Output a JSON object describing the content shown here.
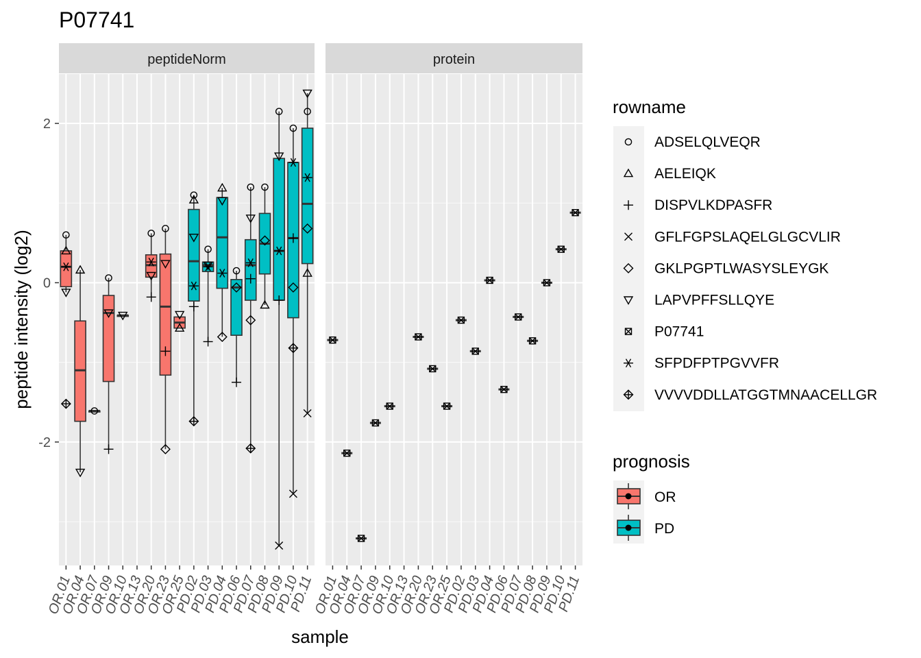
{
  "chart_data": {
    "type": "boxplot",
    "title": "P07741",
    "xlabel": "sample",
    "ylabel": "peptide intensity (log2)",
    "ylim": [
      -3.55,
      2.62
    ],
    "y_ticks": [
      -2,
      0,
      2
    ],
    "grid": true,
    "legend_placement": "right",
    "samples": [
      "OR.01",
      "OR.04",
      "OR.07",
      "OR.09",
      "OR.10",
      "OR.13",
      "OR.20",
      "OR.23",
      "OR.25",
      "PD.02",
      "PD.03",
      "PD.04",
      "PD.06",
      "PD.07",
      "PD.08",
      "PD.09",
      "PD.10",
      "PD.11"
    ],
    "panels": [
      "peptideNorm",
      "protein"
    ],
    "legends": {
      "rowname": {
        "title": "rowname",
        "items": [
          {
            "label": "ADSELQLVEQR",
            "shape": "circle"
          },
          {
            "label": "AELEIQK",
            "shape": "triangle-up"
          },
          {
            "label": "DISPVLKDPASFR",
            "shape": "plus"
          },
          {
            "label": "GFLFGPSLAQELGLGCVLIR",
            "shape": "cross"
          },
          {
            "label": "GKLPGPTLWASYSLEYGK",
            "shape": "diamond"
          },
          {
            "label": "LAPVPFFSLLQYE",
            "shape": "triangle-down"
          },
          {
            "label": "P07741",
            "shape": "square-cross"
          },
          {
            "label": "SFPDFPTPGVVFR",
            "shape": "asterisk"
          },
          {
            "label": "VVVVDDLLATGGTMNAACELLGR",
            "shape": "diamond-plus"
          }
        ]
      },
      "prognosis": {
        "title": "prognosis",
        "items": [
          {
            "label": "OR",
            "color": "#F8766D"
          },
          {
            "label": "PD",
            "color": "#00BFC4"
          }
        ]
      }
    },
    "boxes": [
      {
        "sample": "OR.01",
        "group": "OR",
        "q1": -0.05,
        "median": 0.2,
        "q3": 0.4,
        "lo": -0.12,
        "hi": 0.6
      },
      {
        "sample": "OR.04",
        "group": "OR",
        "q1": -1.74,
        "median": -1.1,
        "q3": -0.48,
        "lo": -2.38,
        "hi": 0.16
      },
      {
        "sample": "OR.07",
        "group": "OR",
        "q1": -1.61,
        "median": -1.61,
        "q3": -1.61,
        "lo": -1.61,
        "hi": -1.61
      },
      {
        "sample": "OR.09",
        "group": "OR",
        "q1": -1.24,
        "median": -0.38,
        "q3": -0.16,
        "lo": -2.09,
        "hi": 0.06
      },
      {
        "sample": "OR.10",
        "group": "OR",
        "q1": -0.41,
        "median": -0.41,
        "q3": -0.41,
        "lo": -0.41,
        "hi": -0.41
      },
      {
        "sample": "OR.20",
        "group": "OR",
        "q1": 0.07,
        "median": 0.22,
        "q3": 0.35,
        "lo": -0.18,
        "hi": 0.62
      },
      {
        "sample": "OR.23",
        "group": "OR",
        "q1": -1.16,
        "median": -0.3,
        "q3": 0.36,
        "lo": -2.09,
        "hi": 0.68
      },
      {
        "sample": "OR.25",
        "group": "OR",
        "q1": -0.57,
        "median": -0.5,
        "q3": -0.43,
        "lo": -0.57,
        "hi": -0.43
      },
      {
        "sample": "PD.02",
        "group": "PD",
        "q1": -0.23,
        "median": 0.27,
        "q3": 0.92,
        "lo": -1.74,
        "hi": 1.1
      },
      {
        "sample": "PD.03",
        "group": "PD",
        "q1": 0.14,
        "median": 0.22,
        "q3": 0.26,
        "lo": -0.74,
        "hi": 0.42
      },
      {
        "sample": "PD.04",
        "group": "PD",
        "q1": -0.07,
        "median": 0.57,
        "q3": 1.07,
        "lo": -0.68,
        "hi": 1.19
      },
      {
        "sample": "PD.06",
        "group": "PD",
        "q1": -0.66,
        "median": -0.06,
        "q3": 0.04,
        "lo": -1.25,
        "hi": 0.15
      },
      {
        "sample": "PD.07",
        "group": "PD",
        "q1": -0.22,
        "median": 0.22,
        "q3": 0.54,
        "lo": -2.08,
        "hi": 1.2
      },
      {
        "sample": "PD.08",
        "group": "PD",
        "q1": 0.11,
        "median": 0.49,
        "q3": 0.87,
        "lo": -0.28,
        "hi": 1.2
      },
      {
        "sample": "PD.09",
        "group": "PD",
        "q1": -0.22,
        "median": 0.4,
        "q3": 1.56,
        "lo": -3.3,
        "hi": 2.15
      },
      {
        "sample": "PD.10",
        "group": "PD",
        "q1": -0.44,
        "median": 0.56,
        "q3": 1.51,
        "lo": -2.65,
        "hi": 1.94
      },
      {
        "sample": "PD.11",
        "group": "PD",
        "q1": 0.24,
        "median": 0.99,
        "q3": 1.94,
        "lo": -1.64,
        "hi": 2.38
      }
    ],
    "points": [
      {
        "sample": "OR.01",
        "shape": "circle",
        "y": 0.6
      },
      {
        "sample": "OR.01",
        "shape": "triangle-up",
        "y": 0.4
      },
      {
        "sample": "OR.01",
        "shape": "asterisk",
        "y": 0.2
      },
      {
        "sample": "OR.01",
        "shape": "triangle-down",
        "y": -0.12
      },
      {
        "sample": "OR.01",
        "shape": "diamond-plus",
        "y": -1.52
      },
      {
        "sample": "OR.04",
        "shape": "triangle-up",
        "y": 0.16
      },
      {
        "sample": "OR.04",
        "shape": "triangle-down",
        "y": -2.38
      },
      {
        "sample": "OR.07",
        "shape": "circle",
        "y": -1.61
      },
      {
        "sample": "OR.09",
        "shape": "circle",
        "y": 0.06
      },
      {
        "sample": "OR.09",
        "shape": "triangle-down",
        "y": -0.38
      },
      {
        "sample": "OR.09",
        "shape": "plus",
        "y": -2.09
      },
      {
        "sample": "OR.10",
        "shape": "triangle-down",
        "y": -0.41
      },
      {
        "sample": "OR.20",
        "shape": "circle",
        "y": 0.62
      },
      {
        "sample": "OR.20",
        "shape": "asterisk",
        "y": 0.26
      },
      {
        "sample": "OR.20",
        "shape": "triangle-down",
        "y": 0.09
      },
      {
        "sample": "OR.20",
        "shape": "plus",
        "y": -0.18
      },
      {
        "sample": "OR.23",
        "shape": "circle",
        "y": 0.68
      },
      {
        "sample": "OR.23",
        "shape": "triangle-down",
        "y": 0.24
      },
      {
        "sample": "OR.23",
        "shape": "plus",
        "y": -0.86
      },
      {
        "sample": "OR.23",
        "shape": "diamond",
        "y": -2.09
      },
      {
        "sample": "OR.25",
        "shape": "triangle-down",
        "y": -0.4
      },
      {
        "sample": "OR.25",
        "shape": "triangle-up",
        "y": -0.57
      },
      {
        "sample": "PD.02",
        "shape": "circle",
        "y": 1.1
      },
      {
        "sample": "PD.02",
        "shape": "triangle-up",
        "y": 1.04
      },
      {
        "sample": "PD.02",
        "shape": "triangle-down",
        "y": 0.57
      },
      {
        "sample": "PD.02",
        "shape": "asterisk",
        "y": -0.04
      },
      {
        "sample": "PD.02",
        "shape": "plus",
        "y": -0.3
      },
      {
        "sample": "PD.02",
        "shape": "diamond-plus",
        "y": -1.74
      },
      {
        "sample": "PD.03",
        "shape": "circle",
        "y": 0.42
      },
      {
        "sample": "PD.03",
        "shape": "triangle-down",
        "y": 0.22
      },
      {
        "sample": "PD.03",
        "shape": "asterisk",
        "y": 0.2
      },
      {
        "sample": "PD.03",
        "shape": "plus",
        "y": -0.74
      },
      {
        "sample": "PD.04",
        "shape": "triangle-up",
        "y": 1.19
      },
      {
        "sample": "PD.04",
        "shape": "triangle-down",
        "y": 1.03
      },
      {
        "sample": "PD.04",
        "shape": "asterisk",
        "y": 0.12
      },
      {
        "sample": "PD.04",
        "shape": "diamond",
        "y": -0.68
      },
      {
        "sample": "PD.06",
        "shape": "circle",
        "y": 0.15
      },
      {
        "sample": "PD.06",
        "shape": "diamond",
        "y": -0.06
      },
      {
        "sample": "PD.06",
        "shape": "plus",
        "y": -1.25
      },
      {
        "sample": "PD.07",
        "shape": "circle",
        "y": 1.2
      },
      {
        "sample": "PD.07",
        "shape": "triangle-down",
        "y": 0.81
      },
      {
        "sample": "PD.07",
        "shape": "asterisk",
        "y": 0.25
      },
      {
        "sample": "PD.07",
        "shape": "plus",
        "y": 0.05
      },
      {
        "sample": "PD.07",
        "shape": "diamond",
        "y": -0.47
      },
      {
        "sample": "PD.07",
        "shape": "diamond-plus",
        "y": -2.08
      },
      {
        "sample": "PD.08",
        "shape": "circle",
        "y": 1.2
      },
      {
        "sample": "PD.08",
        "shape": "diamond",
        "y": 0.53
      },
      {
        "sample": "PD.08",
        "shape": "triangle-up",
        "y": -0.28
      },
      {
        "sample": "PD.09",
        "shape": "circle",
        "y": 2.15
      },
      {
        "sample": "PD.09",
        "shape": "triangle-down",
        "y": 1.59
      },
      {
        "sample": "PD.09",
        "shape": "asterisk",
        "y": 0.4
      },
      {
        "sample": "PD.09",
        "shape": "plus",
        "y": -0.22
      },
      {
        "sample": "PD.09",
        "shape": "cross",
        "y": -3.3
      },
      {
        "sample": "PD.10",
        "shape": "circle",
        "y": 1.94
      },
      {
        "sample": "PD.10",
        "shape": "asterisk",
        "y": 1.51
      },
      {
        "sample": "PD.10",
        "shape": "plus",
        "y": 0.56
      },
      {
        "sample": "PD.10",
        "shape": "diamond",
        "y": -0.06
      },
      {
        "sample": "PD.10",
        "shape": "diamond-plus",
        "y": -0.82
      },
      {
        "sample": "PD.10",
        "shape": "cross",
        "y": -2.65
      },
      {
        "sample": "PD.11",
        "shape": "triangle-down",
        "y": 2.38
      },
      {
        "sample": "PD.11",
        "shape": "circle",
        "y": 2.15
      },
      {
        "sample": "PD.11",
        "shape": "asterisk",
        "y": 1.32
      },
      {
        "sample": "PD.11",
        "shape": "diamond",
        "y": 0.68
      },
      {
        "sample": "PD.11",
        "shape": "triangle-up",
        "y": 0.12
      },
      {
        "sample": "PD.11",
        "shape": "cross",
        "y": -1.64
      }
    ],
    "protein": [
      {
        "sample": "OR.01",
        "y": -0.72
      },
      {
        "sample": "OR.04",
        "y": -2.14
      },
      {
        "sample": "OR.07",
        "y": -3.21
      },
      {
        "sample": "OR.09",
        "y": -1.76
      },
      {
        "sample": "OR.10",
        "y": -1.55
      },
      {
        "sample": "OR.20",
        "y": -0.68
      },
      {
        "sample": "OR.23",
        "y": -1.08
      },
      {
        "sample": "OR.25",
        "y": -1.55
      },
      {
        "sample": "PD.02",
        "y": -0.47
      },
      {
        "sample": "PD.03",
        "y": -0.86
      },
      {
        "sample": "PD.04",
        "y": 0.03
      },
      {
        "sample": "PD.06",
        "y": -1.34
      },
      {
        "sample": "PD.07",
        "y": -0.43
      },
      {
        "sample": "PD.08",
        "y": -0.73
      },
      {
        "sample": "PD.09",
        "y": 0.0
      },
      {
        "sample": "PD.10",
        "y": 0.42
      },
      {
        "sample": "PD.11",
        "y": 0.88
      }
    ]
  }
}
